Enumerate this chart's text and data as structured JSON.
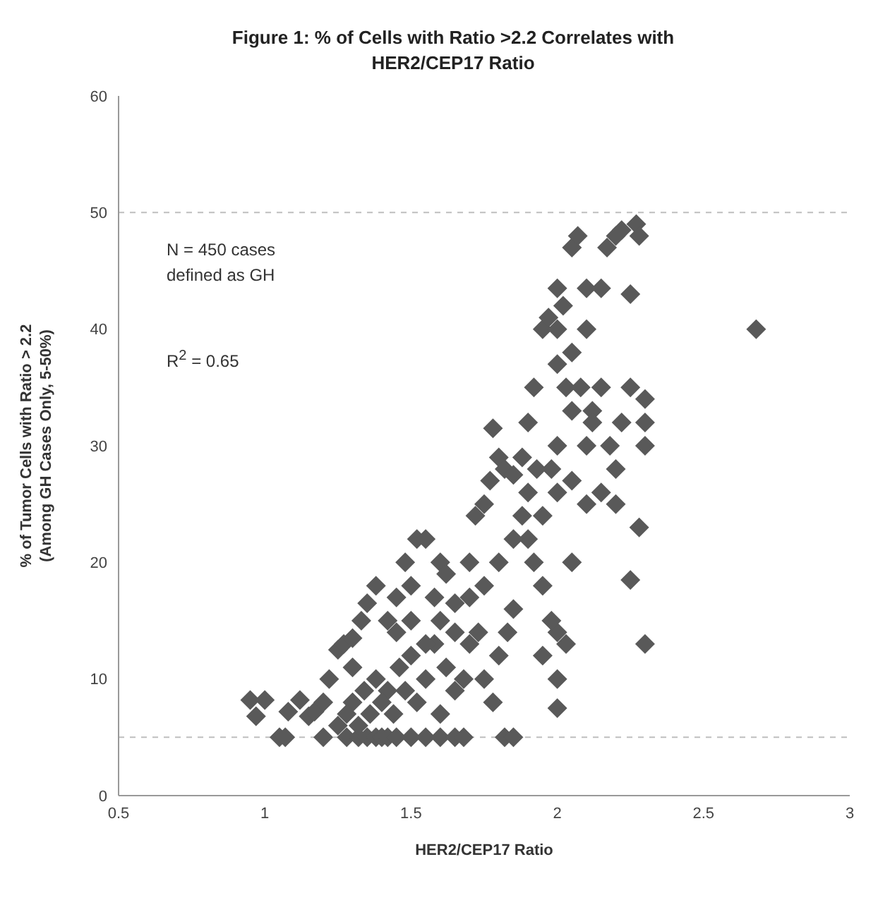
{
  "chart_data": {
    "type": "scatter",
    "title": "Figure 1: % of Cells with Ratio >2.2 Correlates with\nHER2/CEP17 Ratio",
    "xlabel": "HER2/CEP17 Ratio",
    "ylabel": "% of Tumor Cells with Ratio > 2.2\n(Among GH Cases Only, 5-50%)",
    "annotations": [
      "N = 450 cases\ndefined as GH",
      "R$^{2}$ = 0.65"
    ],
    "xlim": [
      0.5,
      3
    ],
    "xticks": [
      0.5,
      1,
      1.5,
      2,
      2.5,
      3
    ],
    "ylim": [
      0,
      60
    ],
    "yticks": [
      0,
      10,
      20,
      30,
      40,
      50,
      60
    ],
    "grid": false,
    "marker": "diamond",
    "legend": false,
    "ref_lines": [
      {
        "axis": "y",
        "value": 5,
        "color": "#bfbfbf",
        "line_style": "dashed"
      },
      {
        "axis": "y",
        "value": 50,
        "color": "#bfbfbf",
        "line_style": "dashed"
      }
    ],
    "series": [
      {
        "color": "#595959",
        "x": [
          0.95,
          0.97,
          1.0,
          1.05,
          1.07,
          1.08,
          1.12,
          1.15,
          1.17,
          1.2,
          1.2,
          1.22,
          1.25,
          1.27,
          1.3,
          1.3,
          1.25,
          1.28,
          1.32,
          1.35,
          1.38,
          1.4,
          1.42,
          1.45,
          1.5,
          1.55,
          1.6,
          1.65,
          1.68,
          1.82,
          1.85,
          1.33,
          1.35,
          1.38,
          1.42,
          1.45,
          1.48,
          1.5,
          1.52,
          1.55,
          1.58,
          1.6,
          1.62,
          1.65,
          1.7,
          1.72,
          1.75,
          1.77,
          1.78,
          1.8,
          1.82,
          1.85,
          1.88,
          1.9,
          1.92,
          1.95,
          1.97,
          2.0,
          2.0,
          2.02,
          2.05,
          2.07,
          2.1,
          2.15,
          2.17,
          2.2,
          2.22,
          2.25,
          2.27,
          2.28,
          2.1,
          2.05,
          2.03,
          2.08,
          2.12,
          2.15,
          2.18,
          2.2,
          2.22,
          2.25,
          2.3,
          2.3,
          2.3,
          2.25,
          2.28,
          2.3,
          2.2,
          2.15,
          2.1,
          2.05,
          2.03,
          2.0,
          2.0,
          2.0,
          1.98,
          1.95,
          1.95,
          1.9,
          1.92,
          1.88,
          1.85,
          1.83,
          1.8,
          1.78,
          1.75,
          1.73,
          1.7,
          1.68,
          1.65,
          1.62,
          1.6,
          1.58,
          1.55,
          1.52,
          1.5,
          1.48,
          1.46,
          1.44,
          1.42,
          1.4,
          1.38,
          1.36,
          1.34,
          1.32,
          1.3,
          1.28,
          1.45,
          1.5,
          1.55,
          1.6,
          1.65,
          1.7,
          1.75,
          1.8,
          1.85,
          1.9,
          1.95,
          2.0,
          2.0,
          2.05,
          2.0,
          2.05,
          1.98,
          1.93,
          2.68,
          2.12,
          2.1
        ],
        "values": [
          8.2,
          6.8,
          8.2,
          5,
          5,
          7.2,
          8.2,
          6.8,
          7.2,
          8,
          5,
          10,
          12.5,
          13,
          13.5,
          11,
          6,
          5,
          5,
          5,
          5,
          5,
          5,
          5,
          5,
          5,
          5,
          5,
          5,
          5,
          5,
          15,
          16.5,
          18,
          15,
          17,
          20,
          18,
          22,
          22,
          17,
          20,
          19,
          16.5,
          20,
          24,
          25,
          27,
          31.5,
          29,
          28,
          27.5,
          29,
          32,
          35,
          40,
          41,
          40,
          43.5,
          42,
          47,
          48,
          43.5,
          43.5,
          47,
          48,
          48.5,
          43,
          49,
          48,
          40,
          38,
          35,
          35,
          33,
          35,
          30,
          28,
          32,
          35,
          34,
          32,
          30,
          18.5,
          23,
          13,
          25,
          26,
          25,
          20,
          13,
          14,
          10,
          7.5,
          15,
          12,
          18,
          22,
          20,
          24,
          16,
          14,
          12,
          8,
          10,
          14,
          13,
          10,
          9,
          11,
          7,
          13,
          10,
          8,
          12,
          9,
          11,
          7,
          9,
          8,
          10,
          7,
          9,
          6,
          8,
          7,
          14,
          15,
          13,
          15,
          14,
          17,
          18,
          20,
          22,
          26,
          24,
          30,
          26,
          27,
          37,
          33,
          28,
          28,
          40,
          32,
          30
        ]
      }
    ]
  }
}
